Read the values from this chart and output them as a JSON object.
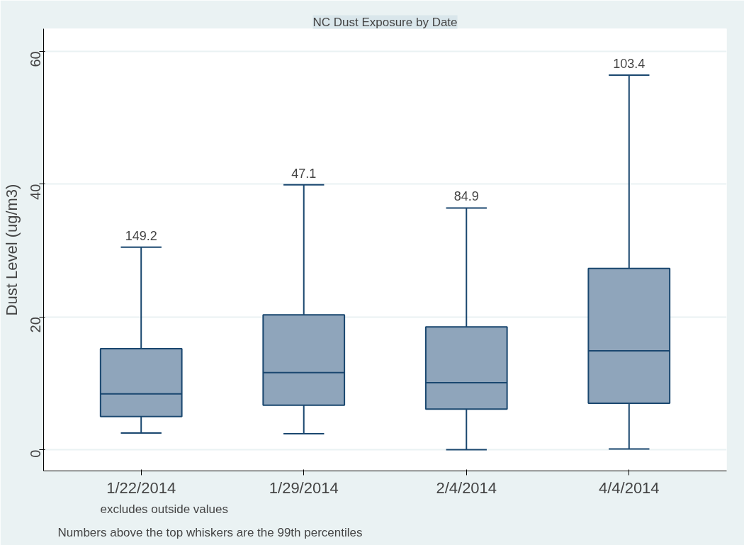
{
  "chart_data": {
    "type": "box",
    "title": "NC Dust Exposure by Date",
    "ylabel": "Dust Level (ug/m3)",
    "categories": [
      "1/22/2014",
      "1/29/2014",
      "2/4/2014",
      "4/4/2014"
    ],
    "boxes": [
      {
        "low": 2.5,
        "q1": 5.0,
        "median": 8.4,
        "q3": 15.2,
        "high": 30.5
      },
      {
        "low": 2.4,
        "q1": 6.7,
        "median": 11.6,
        "q3": 20.3,
        "high": 39.9
      },
      {
        "low": 0,
        "q1": 6.1,
        "median": 10.1,
        "q3": 18.5,
        "high": 36.4
      },
      {
        "low": 0.1,
        "q1": 7.0,
        "median": 14.9,
        "q3": 27.3,
        "high": 56.4
      }
    ],
    "color": "#8fa5bb",
    "ylim": [
      -3.2,
      63.4
    ],
    "yticks": [
      0,
      20,
      40,
      60
    ],
    "grid": "y",
    "annotations": [
      {
        "text": "149.2",
        "x": "1/22/2014",
        "y": 30.5
      },
      {
        "text": "47.1",
        "x": "1/29/2014",
        "y": 39.9
      },
      {
        "text": "84.9",
        "x": "2/4/2014",
        "y": 36.4
      },
      {
        "text": "103.4",
        "x": "4/4/2014",
        "y": 56.4
      },
      "excludes outside values",
      "Numbers above the top whiskers are the 99th percentiles"
    ]
  }
}
